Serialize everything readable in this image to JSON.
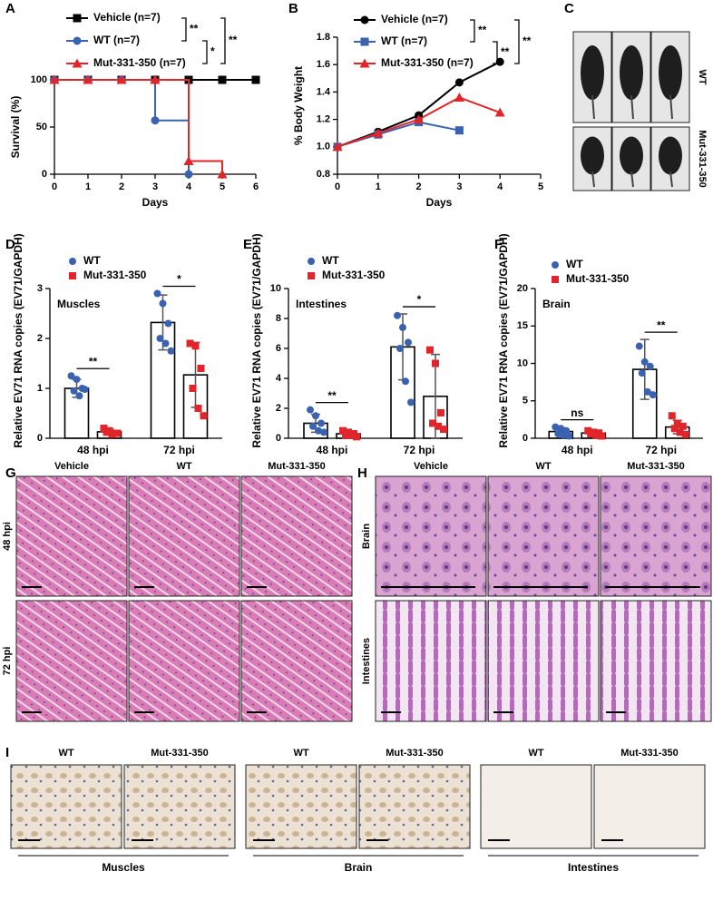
{
  "panel_labels": [
    "A",
    "B",
    "C",
    "D",
    "E",
    "F",
    "G",
    "H",
    "I"
  ],
  "chart_data": [
    {
      "type": "step",
      "xlabel": "Days",
      "ylabel": "Survival (%)",
      "x": [
        0,
        1,
        2,
        3,
        4,
        5,
        6
      ],
      "xlim": [
        0,
        6
      ],
      "xticks": [
        0,
        1,
        2,
        3,
        4,
        5,
        6
      ],
      "ylim": [
        0,
        100
      ],
      "yticks": [
        0,
        50,
        100
      ],
      "series": [
        {
          "name": "Vehicle (n=7)",
          "color": "#000000",
          "marker": "square",
          "values": [
            100,
            100,
            100,
            100,
            100,
            100,
            100
          ]
        },
        {
          "name": "WT (n=7)",
          "color": "#3a62b0",
          "marker": "circle",
          "values": [
            100,
            100,
            100,
            57,
            0,
            null,
            null
          ]
        },
        {
          "name": "Mut-331-350 (n=7)",
          "color": "#e0262a",
          "marker": "triangle",
          "values": [
            100,
            100,
            100,
            100,
            14,
            0,
            null
          ]
        }
      ],
      "annotations": [
        "**",
        "*",
        "**"
      ]
    },
    {
      "type": "line",
      "xlabel": "Days",
      "ylabel": "% Body Weight",
      "x": [
        0,
        1,
        2,
        3,
        4
      ],
      "xlim": [
        0,
        5
      ],
      "xticks": [
        0,
        1,
        2,
        3,
        4,
        5
      ],
      "ylim": [
        0.8,
        1.8
      ],
      "yticks": [
        0.8,
        {
          "value": 1,
          "label": "1.0"
        },
        1.2,
        1.4,
        1.6,
        1.8
      ],
      "series": [
        {
          "name": "Vehicle (n=7)",
          "color": "#000000",
          "marker": "circle",
          "values": [
            1.0,
            1.11,
            1.23,
            1.47,
            1.62
          ]
        },
        {
          "name": "WT (n=7)",
          "color": "#3a62b0",
          "marker": "square",
          "values": [
            1.0,
            1.09,
            1.18,
            1.12,
            null
          ]
        },
        {
          "name": "Mut-331-350 (n=7)",
          "color": "#e0262a",
          "marker": "triangle",
          "values": [
            1.0,
            1.1,
            1.2,
            1.36,
            1.25
          ]
        }
      ],
      "annotations": [
        "**",
        "**",
        "**"
      ]
    },
    {
      "type": "bar",
      "label": "Muscles",
      "ylabel": "Relative EV71 RNA copies (EV71/GAPDH)",
      "categories": [
        "48 hpi",
        "72 hpi"
      ],
      "ylim": [
        0,
        3
      ],
      "yticks": [
        0,
        1,
        2,
        3
      ],
      "series": [
        {
          "name": "WT",
          "color": "#3a62b0",
          "values": [
            1.0,
            2.32
          ],
          "errors": [
            0.18,
            0.55
          ],
          "points": [
            [
              1.25,
              1.18,
              1.0,
              0.95,
              0.85,
              0.98
            ],
            [
              2.9,
              2.7,
              2.3,
              2.0,
              1.9,
              1.75
            ]
          ]
        },
        {
          "name": "Mut-331-350",
          "color": "#e0262a",
          "values": [
            0.13,
            1.27
          ],
          "errors": [
            0.05,
            0.65
          ],
          "points": [
            [
              0.2,
              0.15,
              0.1,
              0.12,
              0.08,
              0.1
            ],
            [
              1.9,
              1.85,
              1.4,
              1.0,
              0.6,
              0.45
            ]
          ]
        }
      ],
      "annotations": [
        "**",
        "*"
      ]
    },
    {
      "type": "bar",
      "label": "Intestines",
      "ylabel": "Relative EV71 RNA copies (EV71/GAPDH)",
      "categories": [
        "48 hpi",
        "72 hpi"
      ],
      "ylim": [
        0,
        10
      ],
      "yticks": [
        0,
        2,
        4,
        6,
        8,
        10
      ],
      "series": [
        {
          "name": "WT",
          "color": "#3a62b0",
          "values": [
            1.0,
            6.1
          ],
          "errors": [
            0.6,
            2.2
          ],
          "points": [
            [
              1.9,
              1.5,
              1.0,
              0.8,
              0.5,
              0.4
            ],
            [
              8.2,
              7.4,
              6.4,
              6.0,
              3.8,
              2.4
            ]
          ]
        },
        {
          "name": "Mut-331-350",
          "color": "#e0262a",
          "values": [
            0.3,
            2.8
          ],
          "errors": [
            0.1,
            2.8
          ],
          "points": [
            [
              0.5,
              0.4,
              0.3,
              0.2,
              0.2,
              0.1
            ],
            [
              5.9,
              5.0,
              1.7,
              1.0,
              0.8,
              0.6
            ]
          ]
        }
      ],
      "annotations": [
        "**",
        "*"
      ]
    },
    {
      "type": "bar",
      "label": "Brain",
      "ylabel": "Relative EV71 RNA copies (EV71/GAPDH)",
      "categories": [
        "48 hpi",
        "72 hpi"
      ],
      "ylim": [
        0,
        20
      ],
      "yticks": [
        0,
        5,
        10,
        15,
        20
      ],
      "series": [
        {
          "name": "WT",
          "color": "#3a62b0",
          "values": [
            0.9,
            9.2
          ],
          "errors": [
            0.5,
            4.0
          ],
          "points": [
            [
              1.5,
              1.3,
              1.0,
              0.6,
              0.4,
              0.3
            ],
            [
              12.3,
              10.2,
              9.6,
              8.7,
              6.2,
              5.8
            ]
          ]
        },
        {
          "name": "Mut-331-350",
          "color": "#e0262a",
          "values": [
            0.7,
            1.5
          ],
          "errors": [
            0.3,
            0.9
          ],
          "points": [
            [
              1.0,
              0.8,
              0.7,
              0.6,
              0.4,
              0.3
            ],
            [
              3.0,
              2.0,
              1.6,
              1.3,
              0.8,
              0.5
            ]
          ]
        }
      ],
      "annotations": [
        "ns",
        "**"
      ]
    }
  ],
  "image_panels": {
    "C": {
      "row_labels": [
        "WT",
        "Mut-331-350"
      ]
    },
    "G": {
      "column_labels": [
        "Vehicle",
        "WT",
        "Mut-331-350"
      ],
      "row_labels": [
        "48 hpi",
        "72 hpi"
      ]
    },
    "H": {
      "column_labels": [
        "Vehicle",
        "WT",
        "Mut-331-350"
      ],
      "row_labels": [
        "Brain",
        "Intestines"
      ]
    },
    "I": {
      "groups": [
        {
          "column_labels": [
            "WT",
            "Mut-331-350"
          ],
          "label": "Muscles"
        },
        {
          "column_labels": [
            "WT",
            "Mut-331-350"
          ],
          "label": "Brain"
        },
        {
          "column_labels": [
            "WT",
            "Mut-331-350"
          ],
          "label": "Intestines"
        }
      ]
    }
  }
}
